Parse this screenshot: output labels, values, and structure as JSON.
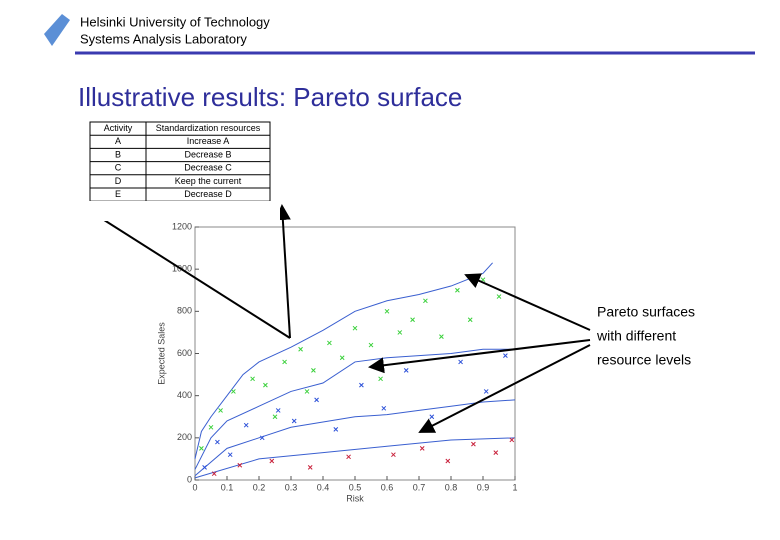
{
  "header": {
    "lines": [
      "Helsinki University of Technology",
      "Systems Analysis Laboratory"
    ]
  },
  "title": "Illustrative results: Pareto surface",
  "table": {
    "columns": [
      "Activity",
      "Standardization resources"
    ],
    "rows": [
      [
        "A",
        "Increase A"
      ],
      [
        "B",
        "Decrease B"
      ],
      [
        "C",
        "Decrease C"
      ],
      [
        "D",
        "Keep the current"
      ],
      [
        "E",
        "Decrease D"
      ]
    ]
  },
  "annotation": [
    "Pareto surfaces",
    "with different",
    "resource levels"
  ],
  "chart_data": {
    "type": "scatter",
    "xlabel": "Risk",
    "ylabel": "Expected Sales",
    "xlim": [
      0,
      1
    ],
    "ylim": [
      0,
      1200
    ],
    "xticks": [
      0,
      0.1,
      0.2,
      0.3,
      0.4,
      0.5,
      0.6,
      0.7,
      0.8,
      0.9,
      1
    ],
    "yticks": [
      0,
      200,
      400,
      600,
      800,
      1000,
      1200
    ],
    "series": [
      {
        "style": "line",
        "color": "#3a5fd0",
        "x": [
          0,
          0.02,
          0.05,
          0.1,
          0.15,
          0.2,
          0.3,
          0.4,
          0.5,
          0.6,
          0.7,
          0.8,
          0.9,
          0.93
        ],
        "values": [
          100,
          230,
          300,
          400,
          500,
          560,
          630,
          710,
          800,
          850,
          880,
          920,
          980,
          1030
        ]
      },
      {
        "style": "line",
        "color": "#3a5fd0",
        "x": [
          0,
          0.05,
          0.1,
          0.2,
          0.3,
          0.4,
          0.5,
          0.6,
          0.7,
          0.8,
          0.9,
          1
        ],
        "values": [
          50,
          200,
          280,
          350,
          420,
          460,
          560,
          580,
          590,
          600,
          620,
          620
        ]
      },
      {
        "style": "line",
        "color": "#3a5fd0",
        "x": [
          0,
          0.1,
          0.2,
          0.3,
          0.5,
          0.6,
          0.7,
          0.8,
          0.9,
          1
        ],
        "values": [
          20,
          150,
          200,
          250,
          300,
          310,
          330,
          350,
          370,
          380
        ]
      },
      {
        "style": "line",
        "color": "#3a5fd0",
        "x": [
          0,
          0.2,
          0.4,
          0.6,
          0.8,
          1
        ],
        "values": [
          10,
          100,
          130,
          160,
          190,
          200
        ]
      },
      {
        "style": "marker",
        "color": "#39d03a",
        "x": [
          0.02,
          0.05,
          0.08,
          0.12,
          0.18,
          0.22,
          0.28,
          0.33,
          0.37,
          0.42,
          0.46,
          0.5,
          0.55,
          0.6,
          0.64,
          0.68,
          0.72,
          0.77,
          0.82,
          0.86,
          0.9,
          0.95,
          0.35,
          0.25,
          0.58
        ],
        "values": [
          150,
          250,
          330,
          420,
          480,
          450,
          560,
          620,
          520,
          650,
          580,
          720,
          640,
          800,
          700,
          760,
          850,
          680,
          900,
          760,
          950,
          870,
          420,
          300,
          480
        ]
      },
      {
        "style": "marker",
        "color": "#2a4fd8",
        "x": [
          0.03,
          0.07,
          0.11,
          0.16,
          0.21,
          0.26,
          0.31,
          0.38,
          0.44,
          0.52,
          0.59,
          0.66,
          0.74,
          0.83,
          0.91,
          0.97
        ],
        "values": [
          60,
          180,
          120,
          260,
          200,
          330,
          280,
          380,
          240,
          450,
          340,
          520,
          300,
          560,
          420,
          590
        ]
      },
      {
        "style": "marker",
        "color": "#c8203a",
        "x": [
          0.06,
          0.14,
          0.24,
          0.36,
          0.48,
          0.62,
          0.71,
          0.79,
          0.87,
          0.94,
          0.99
        ],
        "values": [
          30,
          70,
          90,
          60,
          110,
          120,
          150,
          90,
          170,
          130,
          190
        ]
      }
    ]
  }
}
